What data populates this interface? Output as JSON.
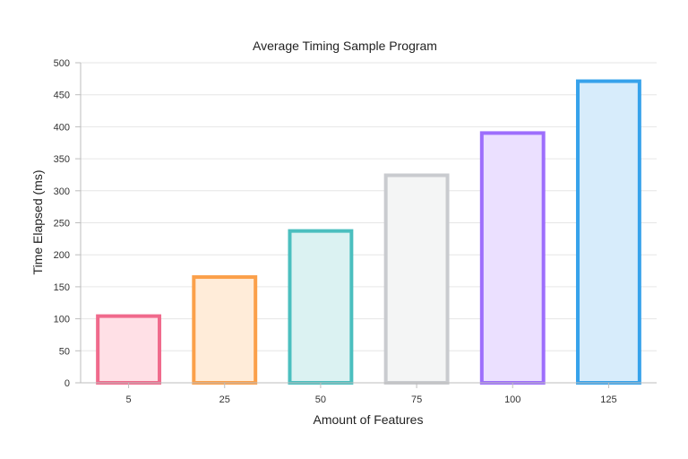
{
  "chart_data": {
    "type": "bar",
    "title": "Average Timing Sample Program",
    "xlabel": "Amount of Features",
    "ylabel": "Time Elapsed (ms)",
    "categories": [
      "5",
      "25",
      "50",
      "75",
      "100",
      "125"
    ],
    "values": [
      107,
      168,
      240,
      327,
      393,
      474
    ],
    "ylim": [
      0,
      500
    ],
    "yticks": [
      0,
      50,
      100,
      150,
      200,
      250,
      300,
      350,
      400,
      450,
      500
    ],
    "grid": true,
    "legend": "none",
    "colors": {
      "border": [
        "#f06a8c",
        "#fba04a",
        "#4bbfbf",
        "#c9cbcf",
        "#9d6efc",
        "#36a2eb"
      ],
      "fill": [
        "#ffe0e6",
        "#ffecd9",
        "#dbf2f2",
        "#f4f5f5",
        "#ebe0ff",
        "#d7ecfb"
      ],
      "grid": "#e6e6e6",
      "axis": "#bdbdbd"
    }
  }
}
